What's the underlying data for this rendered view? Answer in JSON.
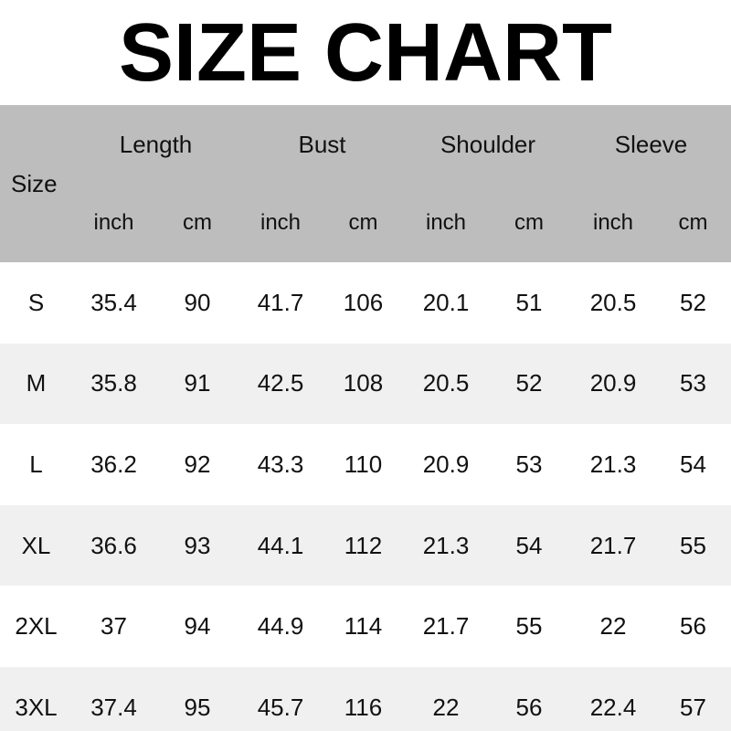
{
  "title": "SIZE CHART",
  "chart_data": {
    "type": "table",
    "title": "SIZE CHART",
    "corner_label": "Size",
    "column_groups": [
      "Length",
      "Bust",
      "Shoulder",
      "Sleeve"
    ],
    "unit_row": [
      "inch",
      "cm",
      "inch",
      "cm",
      "inch",
      "cm",
      "inch",
      "cm"
    ],
    "rows": [
      {
        "size": "S",
        "values": [
          "35.4",
          "90",
          "41.7",
          "106",
          "20.1",
          "51",
          "20.5",
          "52"
        ]
      },
      {
        "size": "M",
        "values": [
          "35.8",
          "91",
          "42.5",
          "108",
          "20.5",
          "52",
          "20.9",
          "53"
        ]
      },
      {
        "size": "L",
        "values": [
          "36.2",
          "92",
          "43.3",
          "110",
          "20.9",
          "53",
          "21.3",
          "54"
        ]
      },
      {
        "size": "XL",
        "values": [
          "36.6",
          "93",
          "44.1",
          "112",
          "21.3",
          "54",
          "21.7",
          "55"
        ]
      },
      {
        "size": "2XL",
        "values": [
          "37",
          "94",
          "44.9",
          "114",
          "21.7",
          "55",
          "22",
          "56"
        ]
      },
      {
        "size": "3XL",
        "values": [
          "37.4",
          "95",
          "45.7",
          "116",
          "22",
          "56",
          "22.4",
          "57"
        ]
      }
    ]
  },
  "colors": {
    "header_bg": "#bdbdbd",
    "row_bg": "#ffffff",
    "row_alt_bg": "#f0f0f0",
    "text": "#111111",
    "title": "#000000"
  }
}
